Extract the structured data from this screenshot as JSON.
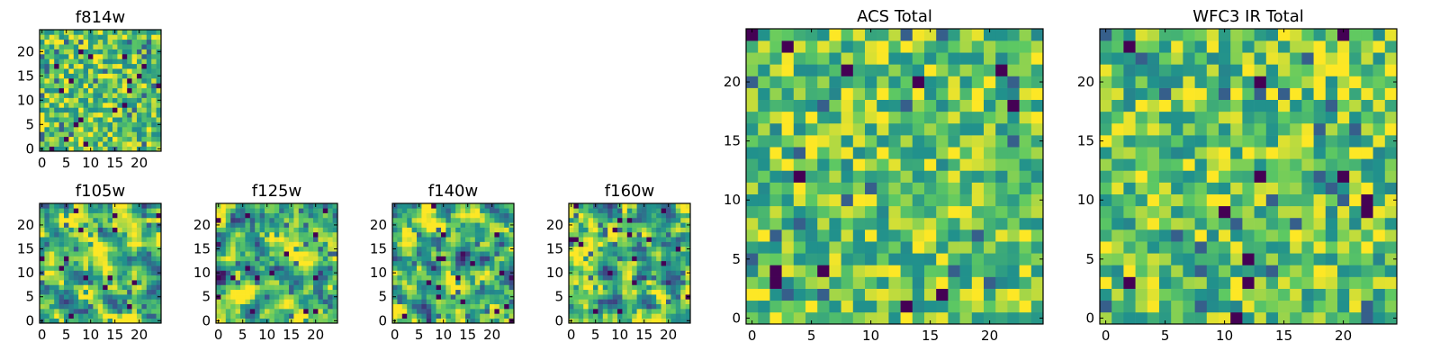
{
  "chart_data": [
    {
      "type": "heatmap",
      "id": "f814w",
      "title": "f814w",
      "grid_size": 25,
      "seed": 814,
      "colormap": "viridis",
      "contrast": "speckled",
      "x_ticks": [
        0,
        5,
        10,
        15,
        20
      ],
      "y_ticks": [
        0,
        5,
        10,
        15,
        20
      ],
      "x_tick_labels": [
        "0",
        "5",
        "10",
        "15",
        "20"
      ],
      "y_tick_labels": [
        "0",
        "5",
        "10",
        "15",
        "20"
      ],
      "xlim": [
        -0.5,
        24.5
      ],
      "ylim": [
        -0.5,
        24.5
      ]
    },
    {
      "type": "heatmap",
      "id": "f105w",
      "title": "f105w",
      "grid_size": 25,
      "seed": 105,
      "colormap": "viridis",
      "contrast": "smooth",
      "x_ticks": [
        0,
        5,
        10,
        15,
        20
      ],
      "y_ticks": [
        0,
        5,
        10,
        15,
        20
      ],
      "x_tick_labels": [
        "0",
        "5",
        "10",
        "15",
        "20"
      ],
      "y_tick_labels": [
        "0",
        "5",
        "10",
        "15",
        "20"
      ],
      "xlim": [
        -0.5,
        24.5
      ],
      "ylim": [
        -0.5,
        24.5
      ]
    },
    {
      "type": "heatmap",
      "id": "f125w",
      "title": "f125w",
      "grid_size": 25,
      "seed": 125,
      "colormap": "viridis",
      "contrast": "smooth",
      "x_ticks": [
        0,
        5,
        10,
        15,
        20
      ],
      "y_ticks": [
        0,
        5,
        10,
        15,
        20
      ],
      "x_tick_labels": [
        "0",
        "5",
        "10",
        "15",
        "20"
      ],
      "y_tick_labels": [
        "0",
        "5",
        "10",
        "15",
        "20"
      ],
      "xlim": [
        -0.5,
        24.5
      ],
      "ylim": [
        -0.5,
        24.5
      ]
    },
    {
      "type": "heatmap",
      "id": "f140w",
      "title": "f140w",
      "grid_size": 25,
      "seed": 140,
      "colormap": "viridis",
      "contrast": "smooth",
      "x_ticks": [
        0,
        5,
        10,
        15,
        20
      ],
      "y_ticks": [
        0,
        5,
        10,
        15,
        20
      ],
      "x_tick_labels": [
        "0",
        "5",
        "10",
        "15",
        "20"
      ],
      "y_tick_labels": [
        "0",
        "5",
        "10",
        "15",
        "20"
      ],
      "xlim": [
        -0.5,
        24.5
      ],
      "ylim": [
        -0.5,
        24.5
      ]
    },
    {
      "type": "heatmap",
      "id": "f160w",
      "title": "f160w",
      "grid_size": 25,
      "seed": 160,
      "colormap": "viridis",
      "contrast": "smooth",
      "x_ticks": [
        0,
        5,
        10,
        15,
        20
      ],
      "y_ticks": [
        0,
        5,
        10,
        15,
        20
      ],
      "x_tick_labels": [
        "0",
        "5",
        "10",
        "15",
        "20"
      ],
      "y_tick_labels": [
        "0",
        "5",
        "10",
        "15",
        "20"
      ],
      "xlim": [
        -0.5,
        24.5
      ],
      "ylim": [
        -0.5,
        24.5
      ]
    },
    {
      "type": "heatmap",
      "id": "acs-total",
      "title": "ACS Total",
      "grid_size": 25,
      "seed": 4242,
      "colormap": "viridis",
      "contrast": "blocky",
      "x_ticks": [
        0,
        5,
        10,
        15,
        20
      ],
      "y_ticks": [
        0,
        5,
        10,
        15,
        20
      ],
      "x_tick_labels": [
        "0",
        "5",
        "10",
        "15",
        "20"
      ],
      "y_tick_labels": [
        "0",
        "5",
        "10",
        "15",
        "20"
      ],
      "xlim": [
        -0.5,
        24.5
      ],
      "ylim": [
        -0.5,
        24.5
      ]
    },
    {
      "type": "heatmap",
      "id": "wfc3-ir-total",
      "title": "WFC3 IR Total",
      "grid_size": 25,
      "seed": 3030,
      "colormap": "viridis",
      "contrast": "blocky",
      "x_ticks": [
        0,
        5,
        10,
        15,
        20
      ],
      "y_ticks": [
        0,
        5,
        10,
        15,
        20
      ],
      "x_tick_labels": [
        "0",
        "5",
        "10",
        "15",
        "20"
      ],
      "y_tick_labels": [
        "0",
        "5",
        "10",
        "15",
        "20"
      ],
      "xlim": [
        -0.5,
        24.5
      ],
      "ylim": [
        -0.5,
        24.5
      ]
    }
  ],
  "colors": {
    "viridis_stops": [
      "#440154",
      "#3b528b",
      "#21918c",
      "#5ec962",
      "#fde725"
    ],
    "frame": "#000000",
    "background": "#ffffff"
  }
}
